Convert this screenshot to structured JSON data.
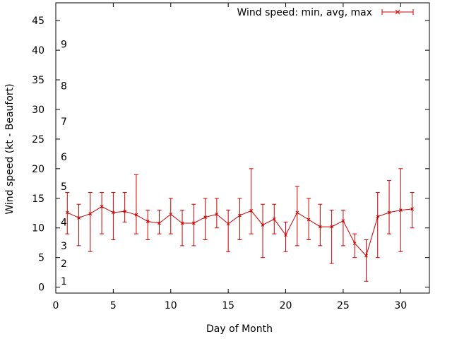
{
  "chart_data": {
    "type": "line",
    "xlabel": "Day of Month",
    "ylabel": "Wind speed (kt - Beaufort)",
    "xlim": [
      0,
      32.5
    ],
    "ylim": [
      -1,
      48
    ],
    "x_ticks": [
      "0",
      "5",
      "10",
      "15",
      "20",
      "25",
      "30"
    ],
    "y_ticks": [
      "0",
      "5",
      "10",
      "15",
      "20",
      "25",
      "30",
      "35",
      "40",
      "45"
    ],
    "beaufort_labels": [
      {
        "label": "1",
        "y": 1
      },
      {
        "label": "2",
        "y": 4
      },
      {
        "label": "3",
        "y": 7
      },
      {
        "label": "4",
        "y": 11
      },
      {
        "label": "5",
        "y": 17
      },
      {
        "label": "6",
        "y": 22
      },
      {
        "label": "7",
        "y": 28
      },
      {
        "label": "8",
        "y": 34
      },
      {
        "label": "9",
        "y": 41
      }
    ],
    "series": [
      {
        "name": "Wind speed: min, avg, max",
        "color": "#cc0000",
        "x": [
          1,
          2,
          3,
          4,
          5,
          6,
          7,
          8,
          9,
          10,
          11,
          12,
          13,
          14,
          15,
          16,
          17,
          18,
          19,
          20,
          21,
          22,
          23,
          24,
          25,
          26,
          27,
          28,
          29,
          30,
          31
        ],
        "avg": [
          12.6,
          11.7,
          12.4,
          13.6,
          12.6,
          12.8,
          12.2,
          11.1,
          10.8,
          12.3,
          10.8,
          10.8,
          11.8,
          12.3,
          10.7,
          12.1,
          12.9,
          10.5,
          11.5,
          8.8,
          12.6,
          11.4,
          10.2,
          10.2,
          11.2,
          7.4,
          5.3,
          11.9,
          12.6,
          13,
          13.2
        ],
        "min": [
          9,
          7,
          6,
          9,
          8,
          11,
          9,
          8,
          9,
          9,
          7,
          7,
          8,
          10,
          6,
          8,
          9,
          5,
          9,
          6,
          7,
          8,
          7,
          4,
          7,
          5,
          1,
          5,
          9,
          6,
          10
        ],
        "max": [
          16,
          14,
          16,
          16,
          16,
          16,
          19,
          13,
          13,
          15,
          13,
          14,
          15,
          15,
          13,
          15,
          20,
          14,
          14,
          11,
          17,
          15,
          14,
          13,
          13,
          9,
          8,
          16,
          18,
          20,
          16
        ]
      }
    ]
  }
}
